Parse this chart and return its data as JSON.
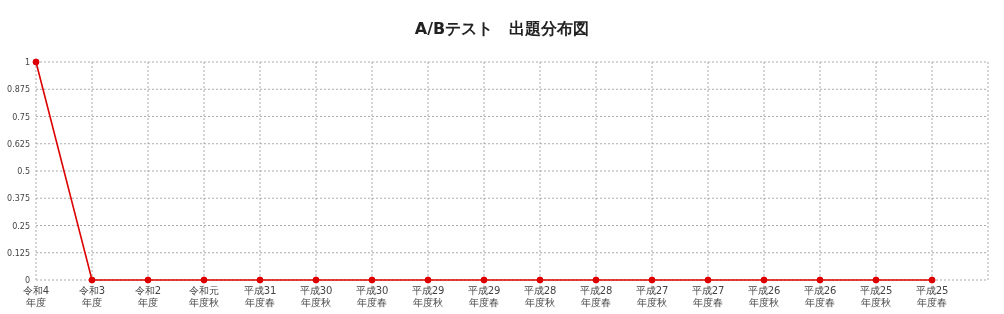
{
  "chart_data": {
    "type": "line",
    "title": "A/Bテスト　出題分布図",
    "categories": [
      "令和4年度",
      "令和3年度",
      "令和2年度",
      "令和元年度秋",
      "平成31年度春",
      "平成30年度秋",
      "平成30年度春",
      "平成29年度秋",
      "平成29年度春",
      "平成28年度秋",
      "平成28年度春",
      "平成27年度秋",
      "平成27年度春",
      "平成26年度秋",
      "平成26年度春",
      "平成25年度秋",
      "平成25年度春"
    ],
    "series": [
      {
        "color": "#dd0000",
        "values": [
          1,
          0,
          0,
          0,
          0,
          0,
          0,
          0,
          0,
          0,
          0,
          0,
          0,
          0,
          0,
          0,
          0
        ]
      }
    ],
    "ylim": [
      0,
      1
    ],
    "yticks": [
      0,
      0.125,
      0.25,
      0.375,
      0.5,
      0.625,
      0.75,
      0.875,
      1
    ],
    "grid": true,
    "marker": "circle",
    "line_style": "solid"
  }
}
